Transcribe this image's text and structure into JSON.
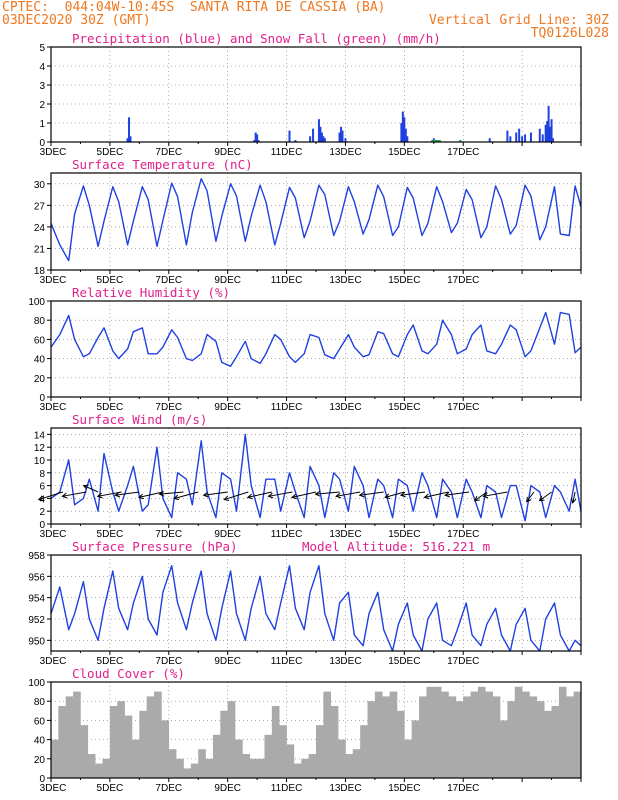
{
  "header": {
    "line1_left": "CPTEC:  044:04W-10:45S  SANTA RITA DE CASSIA (BA)",
    "line2_left": "03DEC2020 30Z (GMT)",
    "line2_right": "Vertical Grid Line: 30Z",
    "line3_right": "TQ0126L028"
  },
  "colors": {
    "header": "#f07820",
    "title": "#e0208c",
    "line": "#2040e0",
    "snow": "#20b040",
    "cloud": "#aaaaaa"
  },
  "x_tick_labels": [
    "3DEC",
    "5DEC",
    "7DEC",
    "9DEC",
    "11DEC",
    "13DEC",
    "15DEC",
    "17DEC"
  ],
  "chart_data": [
    {
      "type": "bar",
      "title": "Precipitation (blue) and Snow Fall (green) (mm/h)",
      "ylim": [
        0,
        5
      ],
      "yticks": [
        0,
        1,
        2,
        3,
        4,
        5
      ],
      "x": [
        2.6,
        2.65,
        2.7,
        6.9,
        6.95,
        7.0,
        7.05,
        8.1,
        8.3,
        8.8,
        8.9,
        9.1,
        9.15,
        9.2,
        9.25,
        9.3,
        9.8,
        9.85,
        9.9,
        10.0,
        11.9,
        11.95,
        12.0,
        12.05,
        12.1,
        12.95,
        13.0,
        13.05,
        13.1,
        13.15,
        13.2,
        13.9,
        14.9,
        15.5,
        15.6,
        15.8,
        15.9,
        16.0,
        16.1,
        16.3,
        16.6,
        16.7,
        16.8,
        16.85,
        16.9,
        16.95,
        17.0,
        17.05
      ],
      "series": [
        {
          "name": "precipitation",
          "values": [
            0.2,
            1.3,
            0.3,
            0.1,
            0.5,
            0.4,
            0.1,
            0.6,
            0.1,
            0.3,
            0.7,
            1.2,
            0.8,
            0.5,
            0.3,
            0.2,
            0.5,
            0.8,
            0.6,
            0.2,
            1.0,
            1.6,
            1.3,
            0.7,
            0.3,
            0.1,
            0.2,
            0.1,
            0.1,
            0.1,
            0.1,
            0.1,
            0.2,
            0.6,
            0.3,
            0.5,
            0.7,
            0.3,
            0.4,
            0.5,
            0.7,
            0.4,
            0.9,
            1.1,
            1.9,
            0.8,
            1.2,
            0.2
          ]
        },
        {
          "name": "snow fall",
          "values": [
            0,
            0,
            0,
            0,
            0,
            0,
            0,
            0,
            0,
            0,
            0,
            0,
            0,
            0,
            0,
            0,
            0,
            0,
            0,
            0,
            0,
            0,
            0,
            0,
            0,
            0.1,
            0.1,
            0.1,
            0.1,
            0.1,
            0.1,
            0.1,
            0,
            0,
            0,
            0,
            0,
            0,
            0,
            0,
            0,
            0,
            0,
            0,
            0,
            0,
            0,
            0
          ]
        }
      ]
    },
    {
      "type": "line",
      "title": "Surface Temperature (nC)",
      "ylim": [
        18,
        31.5
      ],
      "yticks": [
        18,
        21,
        24,
        27,
        30
      ],
      "x": [
        0,
        0.3,
        0.6,
        0.8,
        1.1,
        1.3,
        1.6,
        1.8,
        2.1,
        2.3,
        2.6,
        2.8,
        3.1,
        3.3,
        3.6,
        3.8,
        4.1,
        4.3,
        4.6,
        4.8,
        5.1,
        5.3,
        5.6,
        5.8,
        6.1,
        6.3,
        6.6,
        6.8,
        7.1,
        7.3,
        7.6,
        7.8,
        8.1,
        8.3,
        8.6,
        8.8,
        9.1,
        9.3,
        9.6,
        9.8,
        10.1,
        10.3,
        10.6,
        10.8,
        11.1,
        11.3,
        11.6,
        11.8,
        12.1,
        12.3,
        12.6,
        12.8,
        13.1,
        13.3,
        13.6,
        13.8,
        14.1,
        14.3,
        14.6,
        14.8,
        15.1,
        15.3,
        15.6,
        15.8,
        16.1,
        16.3,
        16.6,
        16.8,
        17.1,
        17.3,
        17.6,
        17.8,
        18.0
      ],
      "series": [
        {
          "values": [
            24.5,
            21.5,
            19.3,
            25.8,
            29.7,
            27.0,
            21.3,
            24.8,
            29.6,
            27.5,
            21.5,
            24.8,
            29.6,
            27.8,
            21.3,
            24.9,
            30.1,
            28.2,
            21.5,
            26.0,
            30.7,
            29.0,
            22.0,
            25.5,
            30.0,
            28.3,
            22.0,
            25.5,
            29.8,
            27.5,
            21.5,
            24.5,
            29.5,
            28.0,
            22.5,
            24.8,
            29.8,
            28.5,
            22.8,
            24.8,
            29.6,
            27.5,
            23.0,
            25.0,
            29.8,
            28.2,
            22.8,
            24.0,
            29.5,
            28.0,
            22.8,
            24.5,
            29.6,
            27.5,
            23.2,
            24.5,
            29.2,
            27.8,
            22.5,
            24.0,
            29.7,
            27.8,
            23.0,
            24.2,
            29.8,
            28.3,
            22.2,
            24.0,
            29.6,
            23.0,
            22.8,
            29.7,
            26.8
          ]
        }
      ]
    },
    {
      "type": "line",
      "title": "Relative Humidity (%)",
      "ylim": [
        0,
        100
      ],
      "yticks": [
        0,
        20,
        40,
        60,
        80,
        100
      ],
      "x": [
        0,
        0.3,
        0.6,
        0.8,
        1.1,
        1.3,
        1.6,
        1.8,
        2.1,
        2.3,
        2.6,
        2.8,
        3.1,
        3.3,
        3.6,
        3.8,
        4.1,
        4.3,
        4.6,
        4.8,
        5.1,
        5.3,
        5.6,
        5.8,
        6.1,
        6.3,
        6.6,
        6.8,
        7.1,
        7.3,
        7.6,
        7.8,
        8.1,
        8.3,
        8.6,
        8.8,
        9.1,
        9.3,
        9.6,
        9.8,
        10.1,
        10.3,
        10.6,
        10.8,
        11.1,
        11.3,
        11.6,
        11.8,
        12.1,
        12.3,
        12.6,
        12.8,
        13.1,
        13.3,
        13.6,
        13.8,
        14.1,
        14.3,
        14.6,
        14.8,
        15.1,
        15.3,
        15.6,
        15.8,
        16.1,
        16.3,
        16.6,
        16.8,
        17.1,
        17.3,
        17.6,
        17.8,
        18.0
      ],
      "series": [
        {
          "values": [
            52,
            65,
            85,
            60,
            42,
            45,
            62,
            72,
            48,
            40,
            50,
            68,
            72,
            45,
            45,
            52,
            70,
            62,
            40,
            38,
            45,
            65,
            58,
            36,
            32,
            42,
            58,
            40,
            35,
            45,
            65,
            60,
            42,
            36,
            45,
            65,
            62,
            44,
            40,
            50,
            65,
            52,
            42,
            44,
            68,
            66,
            45,
            42,
            65,
            75,
            48,
            45,
            55,
            80,
            65,
            45,
            50,
            65,
            75,
            48,
            45,
            55,
            75,
            70,
            42,
            48,
            72,
            88,
            55,
            88,
            86,
            46,
            52
          ]
        }
      ]
    },
    {
      "type": "line",
      "title": "Surface Wind (m/s)",
      "ylim": [
        0,
        15
      ],
      "yticks": [
        0,
        2,
        4,
        6,
        8,
        10,
        12,
        14
      ],
      "x": [
        0,
        0.3,
        0.6,
        0.8,
        1.1,
        1.3,
        1.6,
        1.8,
        2.1,
        2.3,
        2.6,
        2.8,
        3.1,
        3.3,
        3.6,
        3.8,
        4.1,
        4.3,
        4.6,
        4.8,
        5.1,
        5.3,
        5.6,
        5.8,
        6.1,
        6.3,
        6.6,
        6.8,
        7.1,
        7.3,
        7.6,
        7.8,
        8.1,
        8.3,
        8.6,
        8.8,
        9.1,
        9.3,
        9.6,
        9.8,
        10.1,
        10.3,
        10.6,
        10.8,
        11.1,
        11.3,
        11.6,
        11.8,
        12.1,
        12.3,
        12.6,
        12.8,
        13.1,
        13.3,
        13.6,
        13.8,
        14.1,
        14.3,
        14.6,
        14.8,
        15.1,
        15.3,
        15.6,
        15.8,
        16.1,
        16.3,
        16.6,
        16.8,
        17.1,
        17.3,
        17.6,
        17.8,
        18.0
      ],
      "series": [
        {
          "values": [
            4,
            5,
            10,
            3,
            4,
            7,
            2,
            11,
            5,
            2,
            6,
            9,
            2,
            3,
            12,
            4,
            1,
            8,
            7,
            3,
            13,
            5,
            1,
            8,
            7,
            2,
            14,
            6,
            1,
            7,
            7,
            2,
            8,
            5,
            1,
            9,
            6,
            1,
            8,
            7,
            2,
            9,
            6,
            1,
            7,
            6,
            1,
            7,
            6,
            2,
            8,
            6,
            1,
            7,
            5,
            1,
            7,
            5,
            1,
            6,
            5,
            1,
            6,
            6,
            0.5,
            6,
            5,
            1,
            6,
            5,
            2,
            7,
            2
          ]
        }
      ]
    },
    {
      "type": "line",
      "title": "Surface Pressure (hPa)",
      "annotation": "Model Altitude: 516.221 m",
      "ylim": [
        949,
        958
      ],
      "yticks": [
        950,
        952,
        954,
        956,
        958
      ],
      "x": [
        0,
        0.3,
        0.6,
        0.8,
        1.1,
        1.3,
        1.6,
        1.8,
        2.1,
        2.3,
        2.6,
        2.8,
        3.1,
        3.3,
        3.6,
        3.8,
        4.1,
        4.3,
        4.6,
        4.8,
        5.1,
        5.3,
        5.6,
        5.8,
        6.1,
        6.3,
        6.6,
        6.8,
        7.1,
        7.3,
        7.6,
        7.8,
        8.1,
        8.3,
        8.6,
        8.8,
        9.1,
        9.3,
        9.6,
        9.8,
        10.1,
        10.3,
        10.6,
        10.8,
        11.1,
        11.3,
        11.6,
        11.8,
        12.1,
        12.3,
        12.6,
        12.8,
        13.1,
        13.3,
        13.6,
        13.8,
        14.1,
        14.3,
        14.6,
        14.8,
        15.1,
        15.3,
        15.6,
        15.8,
        16.1,
        16.3,
        16.6,
        16.8,
        17.1,
        17.3,
        17.6,
        17.8,
        18.0
      ],
      "series": [
        {
          "values": [
            952.5,
            955.0,
            951.0,
            952.5,
            955.5,
            952.0,
            950.0,
            953.0,
            956.5,
            953.0,
            951.0,
            953.5,
            956.0,
            952.0,
            950.5,
            954.5,
            957.0,
            953.5,
            951.0,
            953.5,
            956.5,
            952.5,
            950.0,
            953.0,
            956.5,
            952.5,
            950.0,
            953.0,
            956.0,
            952.5,
            951.0,
            953.5,
            957.0,
            953.0,
            951.0,
            954.5,
            957.0,
            952.5,
            950.0,
            953.5,
            954.5,
            950.5,
            949.5,
            952.5,
            954.5,
            951.0,
            949.0,
            951.5,
            953.5,
            950.5,
            949.0,
            952.0,
            953.5,
            950.0,
            949.5,
            951.0,
            953.5,
            950.5,
            949.5,
            951.5,
            953.0,
            950.5,
            949.0,
            951.5,
            953.0,
            950.0,
            949.0,
            952.0,
            953.5,
            950.5,
            949.0,
            950.0,
            949.5
          ]
        }
      ]
    },
    {
      "type": "bar",
      "title": "Cloud Cover (%)",
      "ylim": [
        0,
        100
      ],
      "yticks": [
        0,
        20,
        40,
        60,
        80,
        100
      ],
      "x": [
        0,
        0.25,
        0.5,
        0.75,
        1,
        1.25,
        1.5,
        1.75,
        2,
        2.25,
        2.5,
        2.75,
        3,
        3.25,
        3.5,
        3.75,
        4,
        4.25,
        4.5,
        4.75,
        5,
        5.25,
        5.5,
        5.75,
        6,
        6.25,
        6.5,
        6.75,
        7,
        7.25,
        7.5,
        7.75,
        8,
        8.25,
        8.5,
        8.75,
        9,
        9.25,
        9.5,
        9.75,
        10,
        10.25,
        10.5,
        10.75,
        11,
        11.25,
        11.5,
        11.75,
        12,
        12.25,
        12.5,
        12.75,
        13,
        13.25,
        13.5,
        13.75,
        14,
        14.25,
        14.5,
        14.75,
        15,
        15.25,
        15.5,
        15.75,
        16,
        16.25,
        16.5,
        16.75,
        17,
        17.25,
        17.5,
        17.75
      ],
      "series": [
        {
          "values": [
            40,
            75,
            85,
            90,
            55,
            25,
            15,
            20,
            75,
            80,
            65,
            40,
            70,
            85,
            90,
            60,
            30,
            20,
            10,
            15,
            30,
            20,
            45,
            70,
            80,
            40,
            25,
            20,
            20,
            45,
            75,
            55,
            35,
            15,
            20,
            25,
            55,
            90,
            75,
            40,
            25,
            30,
            55,
            80,
            90,
            85,
            90,
            70,
            40,
            60,
            85,
            95,
            95,
            90,
            85,
            80,
            85,
            90,
            95,
            90,
            85,
            60,
            80,
            95,
            90,
            85,
            80,
            70,
            75,
            95,
            85,
            90
          ]
        }
      ]
    }
  ]
}
